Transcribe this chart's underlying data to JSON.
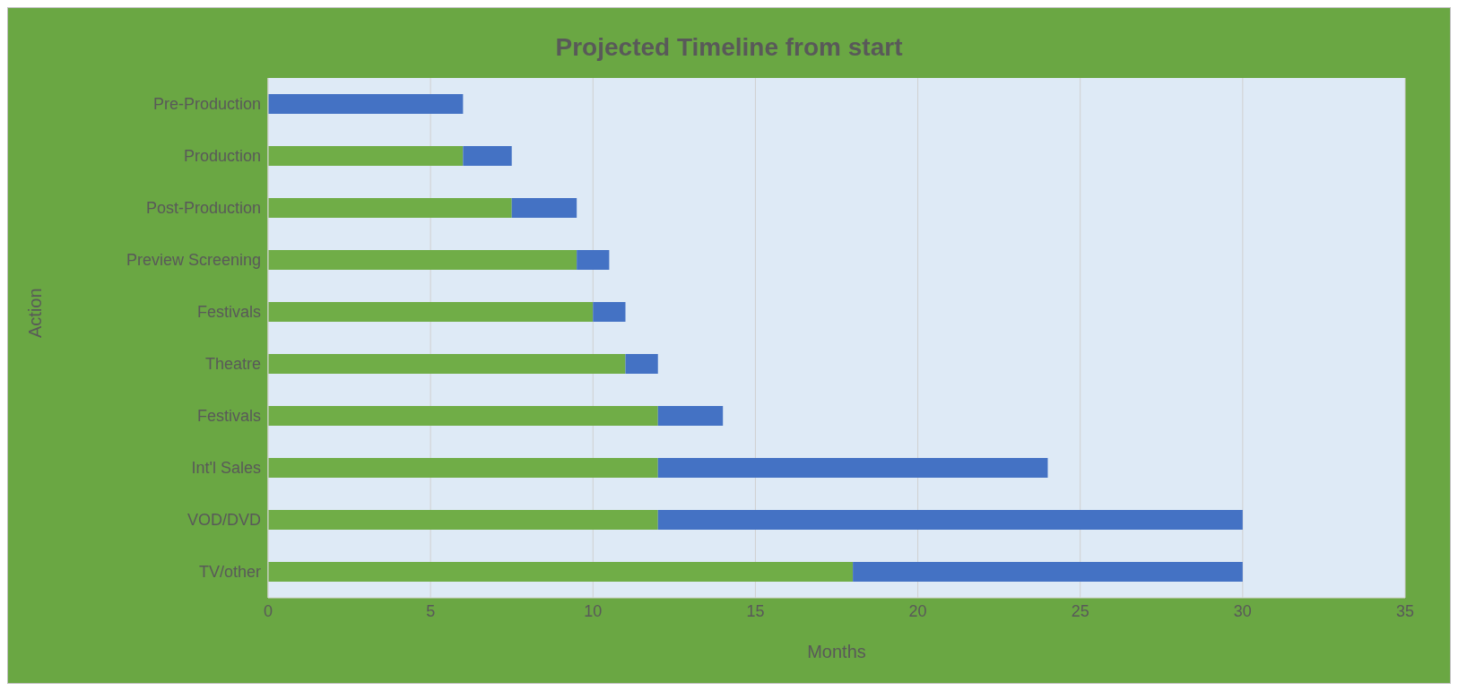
{
  "chart_data": {
    "type": "bar",
    "orientation": "horizontal",
    "stacked": true,
    "title": "Projected Timeline from start",
    "xlabel": "Months",
    "ylabel": "Action",
    "categories": [
      "Pre-Production",
      "Production",
      "Post-Production",
      "Preview Screening",
      "Festivals",
      "Theatre",
      "Festivals",
      "Int'l Sales",
      "VOD/DVD",
      "TV/other"
    ],
    "series": [
      {
        "color": "#70ad47",
        "values": [
          0,
          6,
          7.5,
          9.5,
          10,
          11,
          12,
          12,
          12,
          18
        ]
      },
      {
        "color": "#4472c4",
        "values": [
          6,
          1.5,
          2,
          1,
          1,
          1,
          2,
          12,
          18,
          12
        ]
      }
    ],
    "xlim": [
      0,
      35
    ],
    "xticks": [
      0,
      5,
      10,
      15,
      20,
      25,
      30,
      35
    ],
    "grid": "x"
  }
}
